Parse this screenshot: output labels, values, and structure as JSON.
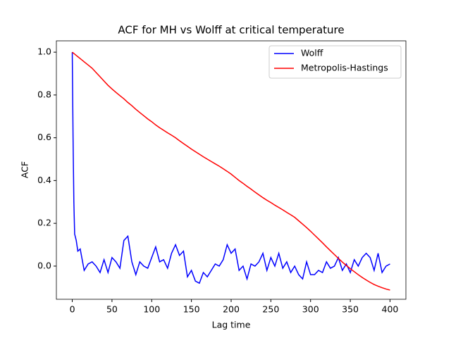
{
  "chart_data": {
    "type": "line",
    "title": "ACF for MH vs Wolff at critical temperature",
    "x_label": "Lag time",
    "y_label": "ACF",
    "x": [
      0,
      1,
      2,
      3,
      5,
      7,
      10,
      15,
      20,
      25,
      30,
      35,
      40,
      45,
      50,
      55,
      60,
      65,
      70,
      75,
      80,
      85,
      90,
      95,
      100,
      105,
      110,
      115,
      120,
      125,
      130,
      135,
      140,
      145,
      150,
      155,
      160,
      165,
      170,
      175,
      180,
      185,
      190,
      195,
      200,
      205,
      210,
      215,
      220,
      225,
      230,
      235,
      240,
      245,
      250,
      255,
      260,
      265,
      270,
      275,
      280,
      285,
      290,
      295,
      300,
      305,
      310,
      315,
      320,
      325,
      330,
      335,
      340,
      345,
      350,
      355,
      360,
      365,
      370,
      375,
      380,
      385,
      390,
      395,
      400
    ],
    "series": [
      {
        "name": "Wolff",
        "color": "#0000ff",
        "values": [
          1.0,
          0.6,
          0.3,
          0.15,
          0.12,
          0.07,
          0.08,
          -0.02,
          0.01,
          0.02,
          0.0,
          -0.03,
          0.03,
          -0.03,
          0.04,
          0.02,
          -0.01,
          0.12,
          0.14,
          0.02,
          -0.04,
          0.02,
          0.0,
          -0.01,
          0.04,
          0.09,
          0.02,
          0.03,
          -0.01,
          0.06,
          0.1,
          0.05,
          0.07,
          -0.05,
          -0.02,
          -0.07,
          -0.08,
          -0.03,
          -0.05,
          -0.02,
          0.01,
          0.0,
          0.03,
          0.1,
          0.06,
          0.08,
          -0.02,
          0.0,
          -0.06,
          0.01,
          0.0,
          0.02,
          0.06,
          -0.02,
          0.04,
          0.0,
          0.06,
          -0.01,
          0.02,
          -0.03,
          0.0,
          -0.04,
          -0.06,
          0.02,
          -0.04,
          -0.04,
          -0.02,
          -0.03,
          0.02,
          -0.01,
          0.0,
          0.04,
          -0.02,
          0.01,
          -0.03,
          0.03,
          0.0,
          0.04,
          0.06,
          0.04,
          -0.02,
          0.06,
          -0.03,
          0.0,
          0.01
        ]
      },
      {
        "name": "Metropolis-Hastings",
        "color": "#ff0000",
        "values": [
          1.0,
          0.997,
          0.994,
          0.991,
          0.985,
          0.979,
          0.97,
          0.955,
          0.94,
          0.925,
          0.905,
          0.885,
          0.865,
          0.845,
          0.828,
          0.812,
          0.797,
          0.782,
          0.765,
          0.75,
          0.733,
          0.718,
          0.703,
          0.688,
          0.675,
          0.66,
          0.647,
          0.635,
          0.623,
          0.612,
          0.6,
          0.586,
          0.573,
          0.56,
          0.547,
          0.535,
          0.523,
          0.511,
          0.5,
          0.489,
          0.478,
          0.467,
          0.455,
          0.443,
          0.43,
          0.415,
          0.4,
          0.387,
          0.373,
          0.36,
          0.346,
          0.333,
          0.32,
          0.308,
          0.297,
          0.285,
          0.274,
          0.263,
          0.251,
          0.24,
          0.228,
          0.212,
          0.196,
          0.18,
          0.163,
          0.145,
          0.127,
          0.109,
          0.09,
          0.072,
          0.054,
          0.036,
          0.019,
          0.003,
          -0.012,
          -0.026,
          -0.04,
          -0.053,
          -0.065,
          -0.076,
          -0.086,
          -0.094,
          -0.101,
          -0.107,
          -0.112
        ]
      }
    ],
    "xlim": [
      -20,
      420
    ],
    "ylim": [
      -0.155,
      1.053
    ],
    "xticks": [
      0,
      50,
      100,
      150,
      200,
      250,
      300,
      350,
      400
    ],
    "yticks": [
      {
        "value": 0,
        "label": "0.0"
      },
      {
        "value": 0.2,
        "label": "0.2"
      },
      {
        "value": 0.4,
        "label": "0.4"
      },
      {
        "value": 0.6,
        "label": "0.6"
      },
      {
        "value": 0.8,
        "label": "0.8"
      },
      {
        "value": 1,
        "label": "1.0"
      }
    ],
    "legend": "upper right"
  }
}
